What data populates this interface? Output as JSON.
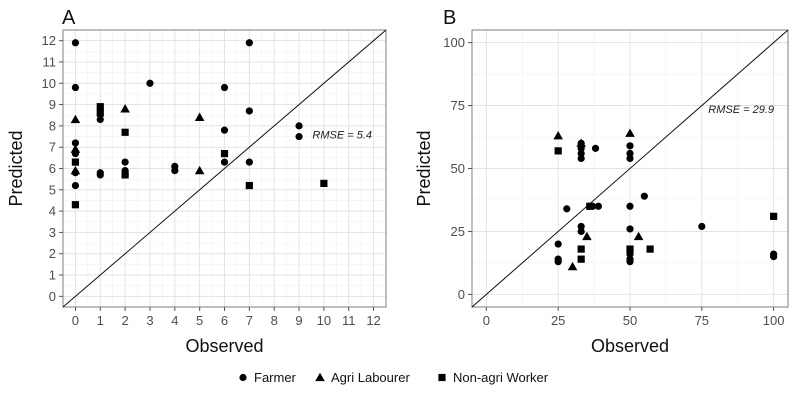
{
  "legend": {
    "items": [
      {
        "name": "Farmer",
        "shape": "circle"
      },
      {
        "name": "Agri Labourer",
        "shape": "triangle"
      },
      {
        "name": "Non-agri Worker",
        "shape": "square"
      }
    ]
  },
  "chart_data": [
    {
      "type": "scatter",
      "panel_label": "A",
      "xlabel": "Observed",
      "ylabel": "Predicted",
      "xlim": [
        -0.5,
        12.5
      ],
      "ylim": [
        -0.5,
        12.5
      ],
      "xticks": [
        0,
        1,
        2,
        3,
        4,
        5,
        6,
        7,
        8,
        9,
        10,
        11,
        12
      ],
      "yticks": [
        0,
        1,
        2,
        3,
        4,
        5,
        6,
        7,
        8,
        9,
        10,
        11,
        12
      ],
      "grid": true,
      "reference_line": "y = x",
      "annotation": "RMSE = 5.4",
      "series": [
        {
          "name": "Farmer",
          "shape": "circle",
          "x": [
            0,
            0,
            0,
            0,
            0,
            0,
            1,
            1,
            1,
            2,
            2,
            2,
            3,
            4,
            4,
            6,
            6,
            6,
            7,
            7,
            7,
            9,
            9
          ],
          "y": [
            11.9,
            9.8,
            7.2,
            6.7,
            5.8,
            5.2,
            8.3,
            5.8,
            5.7,
            6.3,
            5.9,
            5.7,
            10.0,
            6.1,
            5.9,
            9.8,
            7.8,
            6.3,
            11.9,
            8.7,
            6.3,
            8.0,
            7.5
          ]
        },
        {
          "name": "Agri Labourer",
          "shape": "triangle",
          "x": [
            0,
            0,
            0,
            2,
            5,
            5
          ],
          "y": [
            8.3,
            6.9,
            5.9,
            8.8,
            8.4,
            5.9
          ]
        },
        {
          "name": "Non-agri Worker",
          "shape": "square",
          "x": [
            0,
            0,
            1,
            1,
            2,
            2,
            6,
            7,
            10
          ],
          "y": [
            6.3,
            4.3,
            8.9,
            8.6,
            7.7,
            5.7,
            6.7,
            5.2,
            5.3
          ]
        }
      ]
    },
    {
      "type": "scatter",
      "panel_label": "B",
      "xlabel": "Observed",
      "ylabel": "Predicted",
      "xlim": [
        -5,
        105
      ],
      "ylim": [
        -5,
        105
      ],
      "xticks": [
        0,
        25,
        50,
        75,
        100
      ],
      "yticks": [
        0,
        25,
        50,
        75,
        100
      ],
      "grid": true,
      "reference_line": "y = x",
      "annotation": "RMSE = 29.9",
      "series": [
        {
          "name": "Farmer",
          "shape": "circle",
          "x": [
            25,
            25,
            25,
            28,
            33,
            33,
            33,
            33,
            33,
            33,
            36,
            37,
            38,
            39,
            50,
            50,
            50,
            50,
            50,
            50,
            50,
            50,
            55,
            75,
            100,
            100
          ],
          "y": [
            20,
            14,
            13,
            34,
            60,
            58,
            56,
            54,
            27,
            25,
            35,
            35,
            58,
            35,
            59,
            56,
            54,
            35,
            26,
            16,
            14,
            13,
            39,
            27,
            16,
            15
          ]
        },
        {
          "name": "Agri Labourer",
          "shape": "triangle",
          "x": [
            25,
            30,
            33,
            35,
            50,
            53
          ],
          "y": [
            63,
            11,
            60,
            23,
            64,
            23
          ]
        },
        {
          "name": "Non-agri Worker",
          "shape": "square",
          "x": [
            25,
            33,
            33,
            36,
            50,
            57,
            100
          ],
          "y": [
            57,
            18,
            14,
            35,
            18,
            18,
            31
          ]
        }
      ]
    }
  ]
}
